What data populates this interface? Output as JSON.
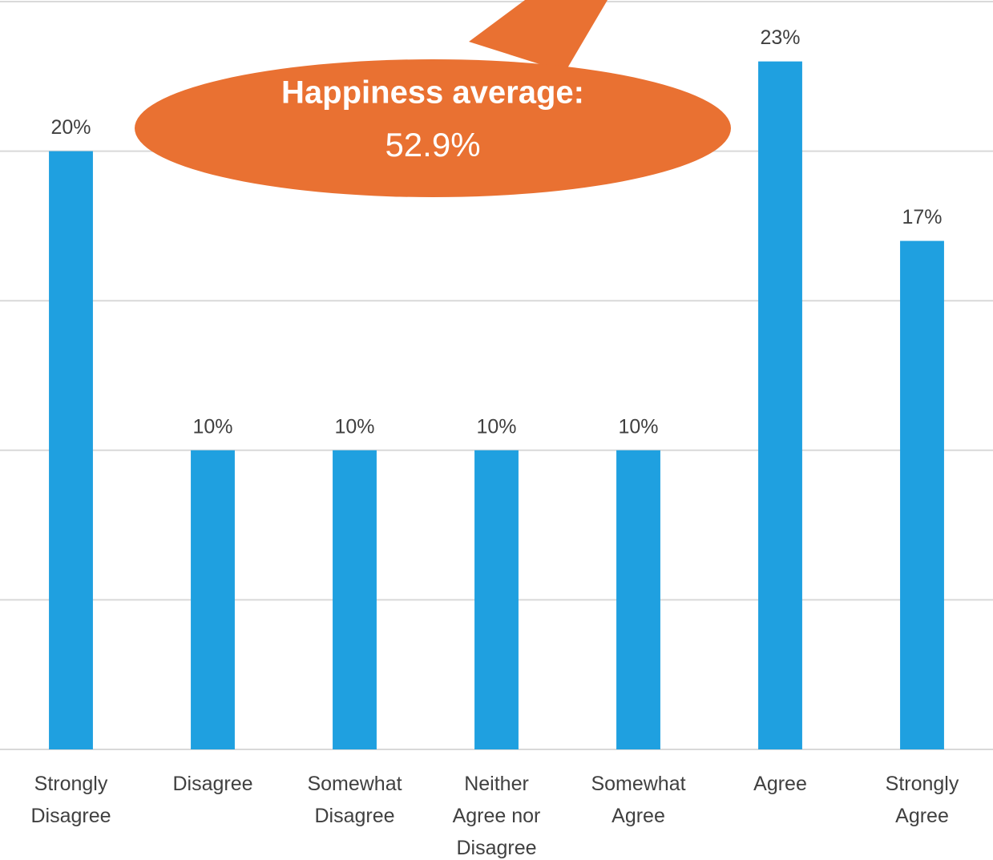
{
  "chart_data": {
    "type": "bar",
    "categories": [
      "Strongly Disagree",
      "Disagree",
      "Somewhat Disagree",
      "Neither Agree nor Disagree",
      "Somewhat Agree",
      "Agree",
      "Strongly Agree"
    ],
    "values": [
      20,
      10,
      10,
      10,
      10,
      23,
      17
    ],
    "value_labels": [
      "20%",
      "10%",
      "10%",
      "10%",
      "10%",
      "23%",
      "17%"
    ],
    "color": "#1fa0e0",
    "ylim": [
      0,
      25
    ],
    "yticks": [
      0,
      5,
      10,
      15,
      20,
      25
    ],
    "grid": true,
    "annotation": {
      "heading": "Happiness average:",
      "text": "52.9%",
      "color": "#e97132"
    }
  }
}
